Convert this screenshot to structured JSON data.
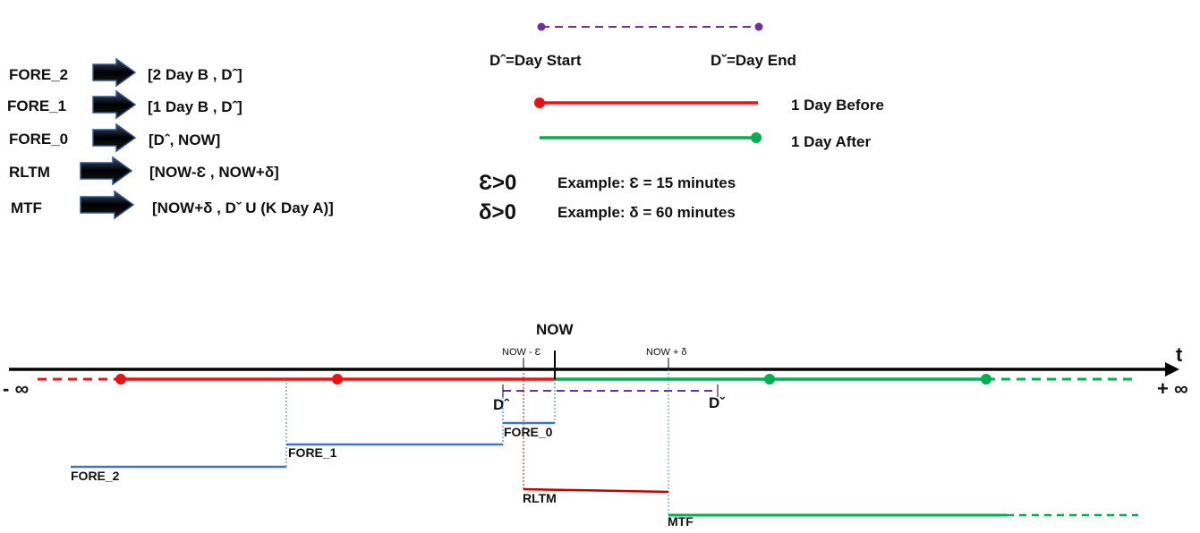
{
  "definitions": [
    {
      "name": "FORE_2",
      "interval": "[2 Day B , Dˆ]"
    },
    {
      "name": "FORE_1",
      "interval": "[1 Day B , Dˆ]"
    },
    {
      "name": "FORE_0",
      "interval": "[Dˆ, NOW]"
    },
    {
      "name": "RLTM",
      "interval": "[NOW-Ɛ , NOW+δ]"
    },
    {
      "name": "MTF",
      "interval": "[NOW+δ , Dˇ U (K Day A)]"
    }
  ],
  "legend": {
    "day_start": "Dˆ=Day Start",
    "day_end": "Dˇ=Day End",
    "day_before": "1 Day Before",
    "day_after": "1 Day After",
    "eps_symbol": "Ɛ>0",
    "eps_example": "Example: Ɛ = 15 minutes",
    "delta_symbol": "δ>0",
    "delta_example": "Example: δ = 60 minutes"
  },
  "timeline": {
    "now": "NOW",
    "now_minus_eps": "NOW - Ɛ",
    "now_plus_delta": "NOW + δ",
    "t_label": "t",
    "neg_inf": "- ∞",
    "pos_inf": "+ ∞",
    "d_start": "Dˆ",
    "d_end": "Dˇ",
    "fore_0": "FORE_0",
    "fore_1": "FORE_1",
    "fore_2": "FORE_2",
    "rltm": "RLTM",
    "mtf": "MTF"
  },
  "colors": {
    "red": "#ee1111",
    "green": "#00b050",
    "purple": "#7030a0",
    "blue": "#4472c4",
    "dark_red": "#c00000",
    "teal": "#2ca7a0",
    "axis": "#000000"
  }
}
